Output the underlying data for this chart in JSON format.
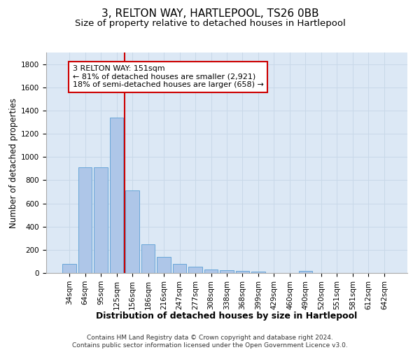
{
  "title": "3, RELTON WAY, HARTLEPOOL, TS26 0BB",
  "subtitle": "Size of property relative to detached houses in Hartlepool",
  "xlabel": "Distribution of detached houses by size in Hartlepool",
  "ylabel": "Number of detached properties",
  "footer_line1": "Contains HM Land Registry data © Crown copyright and database right 2024.",
  "footer_line2": "Contains public sector information licensed under the Open Government Licence v3.0.",
  "bar_labels": [
    "34sqm",
    "64sqm",
    "95sqm",
    "125sqm",
    "156sqm",
    "186sqm",
    "216sqm",
    "247sqm",
    "277sqm",
    "308sqm",
    "338sqm",
    "368sqm",
    "399sqm",
    "429sqm",
    "460sqm",
    "490sqm",
    "520sqm",
    "551sqm",
    "581sqm",
    "612sqm",
    "642sqm"
  ],
  "bar_values": [
    80,
    910,
    910,
    1340,
    710,
    248,
    140,
    80,
    55,
    30,
    25,
    20,
    15,
    0,
    0,
    20,
    0,
    0,
    0,
    0,
    0
  ],
  "bar_color": "#aec6e8",
  "bar_edge_color": "#5a9fd4",
  "vline_index": 4,
  "vline_color": "#cc0000",
  "annotation_line1": "3 RELTON WAY: 151sqm",
  "annotation_line2": "← 81% of detached houses are smaller (2,921)",
  "annotation_line3": "18% of semi-detached houses are larger (658) →",
  "annotation_box_color": "#cc0000",
  "ylim": [
    0,
    1900
  ],
  "yticks": [
    0,
    200,
    400,
    600,
    800,
    1000,
    1200,
    1400,
    1600,
    1800
  ],
  "grid_color": "#c8d8e8",
  "bg_color": "#dce8f5",
  "title_fontsize": 11,
  "subtitle_fontsize": 9.5,
  "ylabel_fontsize": 8.5,
  "xlabel_fontsize": 9,
  "tick_fontsize": 7.5,
  "annotation_fontsize": 8,
  "footer_fontsize": 6.5
}
